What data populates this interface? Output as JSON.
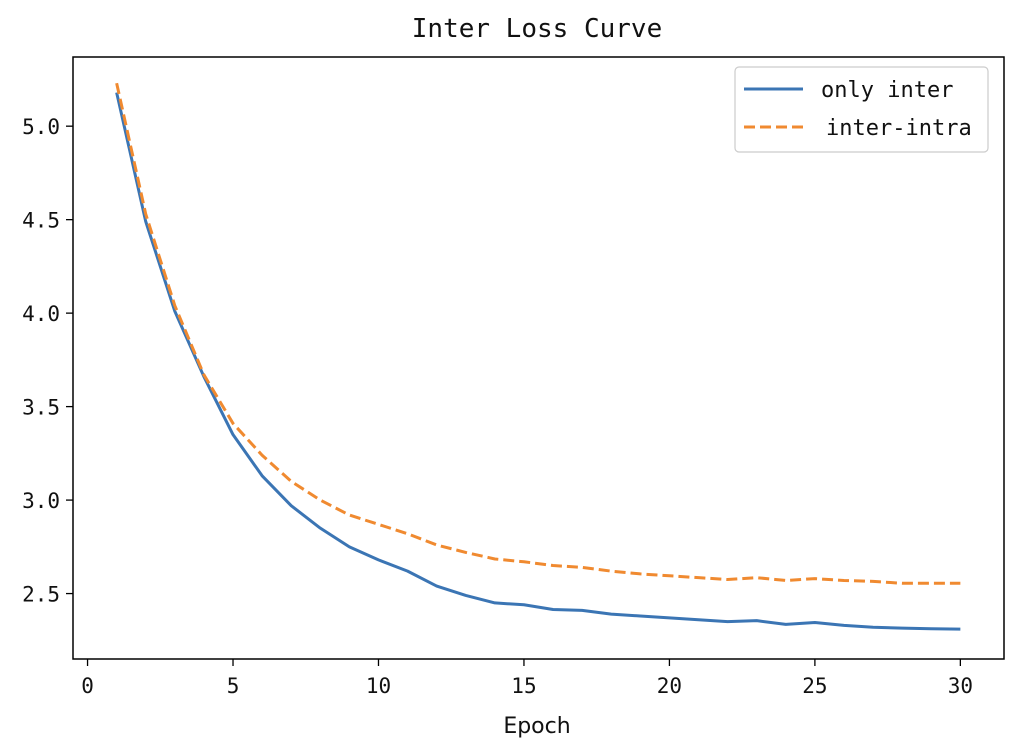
{
  "chart_data": {
    "type": "line",
    "title": "Inter Loss Curve",
    "xlabel": "Epoch",
    "ylabel": "",
    "xlim": [
      -0.5,
      31.5
    ],
    "ylim": [
      2.15,
      5.37
    ],
    "xticks": [
      0,
      5,
      10,
      15,
      20,
      25,
      30
    ],
    "yticks": [
      2.5,
      3.0,
      3.5,
      4.0,
      4.5,
      5.0
    ],
    "ytick_labels": [
      "2.5",
      "3.0",
      "3.5",
      "4.0",
      "4.5",
      "5.0"
    ],
    "grid": false,
    "legend_position": "top-right",
    "x": [
      1,
      2,
      3,
      4,
      5,
      6,
      7,
      8,
      9,
      10,
      11,
      12,
      13,
      14,
      15,
      16,
      17,
      18,
      19,
      20,
      21,
      22,
      23,
      24,
      25,
      26,
      27,
      28,
      29,
      30
    ],
    "series": [
      {
        "name": "only inter",
        "color": "#3b75b4",
        "style": "solid",
        "values": [
          5.18,
          4.49,
          4.01,
          3.66,
          3.35,
          3.13,
          2.97,
          2.85,
          2.75,
          2.68,
          2.62,
          2.54,
          2.49,
          2.45,
          2.44,
          2.415,
          2.41,
          2.39,
          2.38,
          2.37,
          2.36,
          2.35,
          2.355,
          2.335,
          2.345,
          2.33,
          2.32,
          2.315,
          2.312,
          2.31
        ]
      },
      {
        "name": "inter-intra",
        "color": "#f08a30",
        "style": "dashed",
        "values": [
          5.23,
          4.53,
          4.04,
          3.67,
          3.41,
          3.24,
          3.1,
          3.0,
          2.92,
          2.87,
          2.82,
          2.76,
          2.72,
          2.685,
          2.67,
          2.65,
          2.64,
          2.62,
          2.605,
          2.595,
          2.585,
          2.575,
          2.585,
          2.57,
          2.58,
          2.57,
          2.565,
          2.555,
          2.555,
          2.555
        ]
      }
    ]
  }
}
